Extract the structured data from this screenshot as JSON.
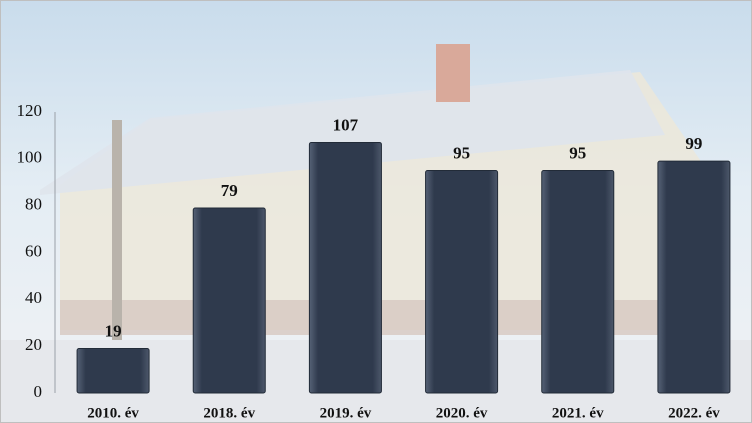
{
  "chart_data": {
    "type": "bar",
    "categories": [
      "2010. év",
      "2018. év",
      "2019. év",
      "2020. év",
      "2021. év",
      "2022. év"
    ],
    "values": [
      19,
      79,
      107,
      95,
      95,
      99
    ],
    "color": "#2f3a4d",
    "ylim": [
      0,
      120
    ],
    "yticks": [
      0,
      20,
      40,
      60,
      80,
      100,
      120
    ],
    "grid": false
  }
}
